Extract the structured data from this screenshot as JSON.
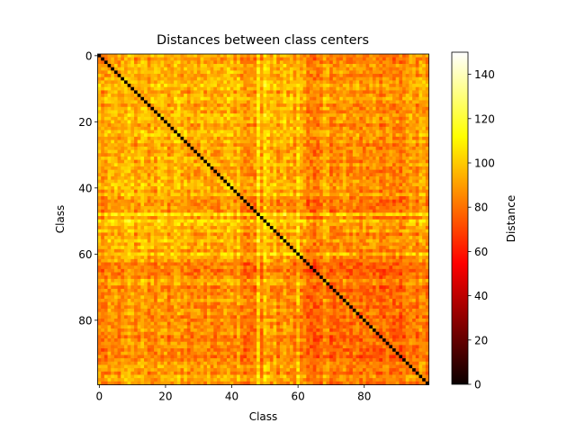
{
  "chart_data": {
    "type": "heatmap",
    "title": "Distances between class centers",
    "xlabel": "Class",
    "ylabel": "Class",
    "n_classes": 100,
    "xticks": [
      0,
      20,
      40,
      60,
      80
    ],
    "yticks": [
      0,
      20,
      40,
      60,
      80
    ],
    "colormap": "hot",
    "colorbar": {
      "label": "Distance",
      "vmin": 0,
      "vmax": 150,
      "ticks": [
        0,
        20,
        40,
        60,
        80,
        100,
        120,
        140
      ]
    },
    "diagonal_value": 0,
    "class_profile": [
      94,
      83,
      90,
      96,
      97,
      99,
      88,
      96,
      98,
      105,
      100,
      86,
      95,
      104,
      99,
      86,
      96,
      88,
      101,
      98,
      102,
      86,
      95,
      101,
      104,
      90,
      97,
      85,
      90,
      90,
      91,
      99,
      89,
      97,
      90,
      91,
      90,
      93,
      97,
      100,
      98,
      86,
      101,
      83,
      79,
      80,
      84,
      80,
      120,
      84,
      116,
      102,
      95,
      105,
      84,
      94,
      103,
      91,
      96,
      86,
      112,
      89,
      88,
      70,
      74,
      68,
      73,
      75,
      92,
      88,
      72,
      75,
      83,
      81,
      86,
      81,
      78,
      85,
      84,
      72,
      80,
      78,
      80,
      82,
      79,
      70,
      76,
      81,
      78,
      72,
      79,
      70,
      75,
      86,
      88,
      88,
      78,
      96,
      91,
      82
    ]
  }
}
